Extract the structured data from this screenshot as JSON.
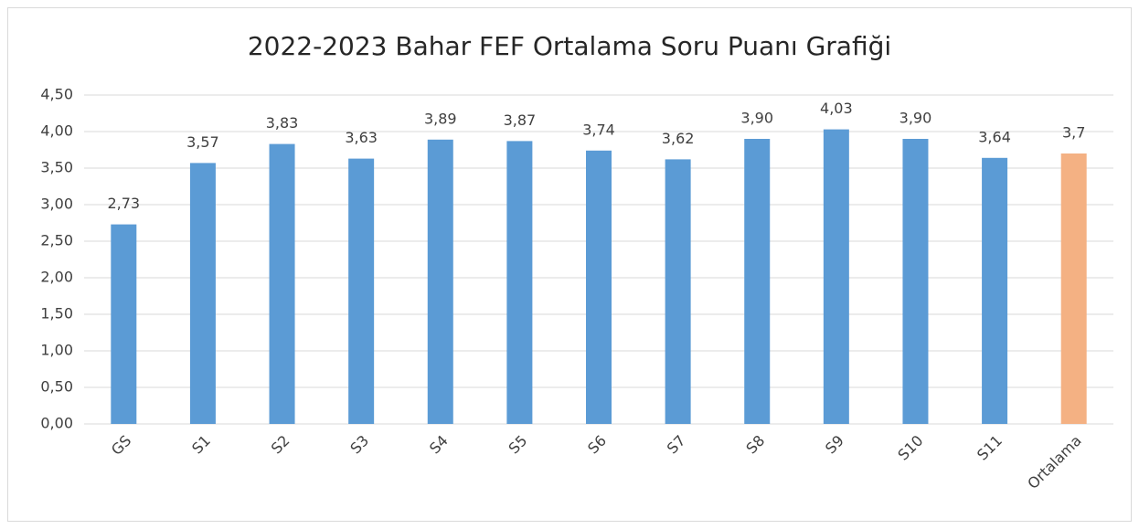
{
  "chart_data": {
    "type": "bar",
    "title": "2022-2023 Bahar FEF Ortalama Soru Puanı Grafiği",
    "categories": [
      "GS",
      "S1",
      "S2",
      "S3",
      "S4",
      "S5",
      "S6",
      "S7",
      "S8",
      "S9",
      "S10",
      "S11",
      "Ortalama"
    ],
    "values": [
      2.73,
      3.57,
      3.83,
      3.63,
      3.89,
      3.87,
      3.74,
      3.62,
      3.9,
      4.03,
      3.9,
      3.64,
      3.7
    ],
    "value_labels": [
      "2,73",
      "3,57",
      "3,83",
      "3,63",
      "3,89",
      "3,87",
      "3,74",
      "3,62",
      "3,90",
      "4,03",
      "3,90",
      "3,64",
      "3,7"
    ],
    "colors": [
      "#5b9bd5",
      "#5b9bd5",
      "#5b9bd5",
      "#5b9bd5",
      "#5b9bd5",
      "#5b9bd5",
      "#5b9bd5",
      "#5b9bd5",
      "#5b9bd5",
      "#5b9bd5",
      "#5b9bd5",
      "#5b9bd5",
      "#f4b183"
    ],
    "ylim": [
      0,
      4.5
    ],
    "yticks": [
      {
        "value": 0,
        "label": "0,00"
      },
      {
        "value": 0.5,
        "label": "0,50"
      },
      {
        "value": 1,
        "label": "1,00"
      },
      {
        "value": 1.5,
        "label": "1,50"
      },
      {
        "value": 2,
        "label": "2,00"
      },
      {
        "value": 2.5,
        "label": "2,50"
      },
      {
        "value": 3,
        "label": "3,00"
      },
      {
        "value": 3.5,
        "label": "3,50"
      },
      {
        "value": 4,
        "label": "4,00"
      },
      {
        "value": 4.5,
        "label": "4,50"
      }
    ],
    "grid": true
  }
}
